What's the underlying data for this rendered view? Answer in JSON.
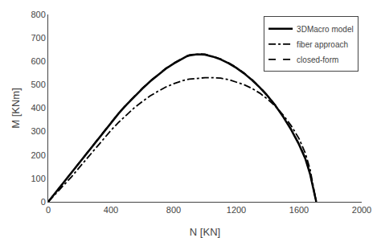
{
  "chart_data": {
    "type": "line",
    "xlabel": "N [KN]",
    "ylabel": "M [KNm]",
    "xlim": [
      0,
      2000
    ],
    "ylim": [
      0,
      800
    ],
    "xticks": [
      0,
      400,
      800,
      1200,
      1600,
      2000
    ],
    "yticks": [
      0,
      100,
      200,
      300,
      400,
      500,
      600,
      700,
      800
    ],
    "grid": false,
    "legend": "upper right",
    "series": [
      {
        "name": "3DMacro model",
        "color": "black",
        "line_style": "solid",
        "x": [
          0,
          50,
          100,
          150,
          200,
          250,
          300,
          350,
          400,
          450,
          500,
          550,
          600,
          650,
          700,
          750,
          800,
          830,
          860,
          880,
          900,
          920,
          950,
          1000,
          1050,
          1100,
          1150,
          1200,
          1250,
          1300,
          1350,
          1400,
          1450,
          1500,
          1550,
          1600,
          1640,
          1670,
          1690,
          1710
        ],
        "values": [
          0,
          42,
          83,
          125,
          168,
          210,
          252,
          295,
          338,
          378,
          415,
          450,
          483,
          514,
          542,
          568,
          590,
          602,
          614,
          620,
          625,
          628,
          630,
          628,
          620,
          608,
          592,
          572,
          548,
          520,
          488,
          452,
          410,
          362,
          308,
          245,
          185,
          120,
          60,
          0
        ]
      },
      {
        "name": "fiber approach",
        "color": "black",
        "line_style": "dashdot",
        "x": [
          0,
          50,
          100,
          150,
          200,
          250,
          300,
          350,
          400,
          450,
          500,
          550,
          600,
          650,
          700,
          750,
          800,
          830,
          860,
          900,
          950,
          1000,
          1050,
          1100,
          1150,
          1200,
          1250,
          1300,
          1350,
          1400,
          1450,
          1500,
          1550,
          1600,
          1640,
          1670,
          1690,
          1710
        ],
        "values": [
          0,
          35,
          70,
          108,
          148,
          188,
          228,
          268,
          305,
          340,
          372,
          402,
          428,
          452,
          472,
          490,
          504,
          512,
          518,
          524,
          528,
          530,
          530,
          528,
          522,
          512,
          500,
          484,
          464,
          438,
          408,
          370,
          325,
          270,
          208,
          140,
          75,
          0
        ]
      },
      {
        "name": "closed-form",
        "color": "black",
        "line_style": "dash",
        "x": [
          0,
          50,
          100,
          150,
          200,
          250,
          300,
          350,
          400,
          450,
          500,
          550,
          600,
          650,
          700,
          750,
          800,
          830,
          860,
          880,
          900,
          920,
          950,
          1000,
          1050,
          1100,
          1150,
          1200,
          1250,
          1300,
          1350,
          1400,
          1450,
          1500,
          1550,
          1600,
          1640,
          1670,
          1690,
          1710
        ],
        "values": [
          0,
          42,
          84,
          126,
          169,
          211,
          254,
          297,
          340,
          380,
          417,
          452,
          485,
          516,
          544,
          570,
          592,
          604,
          616,
          622,
          627,
          630,
          632,
          630,
          622,
          610,
          594,
          574,
          550,
          522,
          490,
          454,
          412,
          364,
          310,
          247,
          187,
          122,
          61,
          0
        ]
      }
    ]
  }
}
